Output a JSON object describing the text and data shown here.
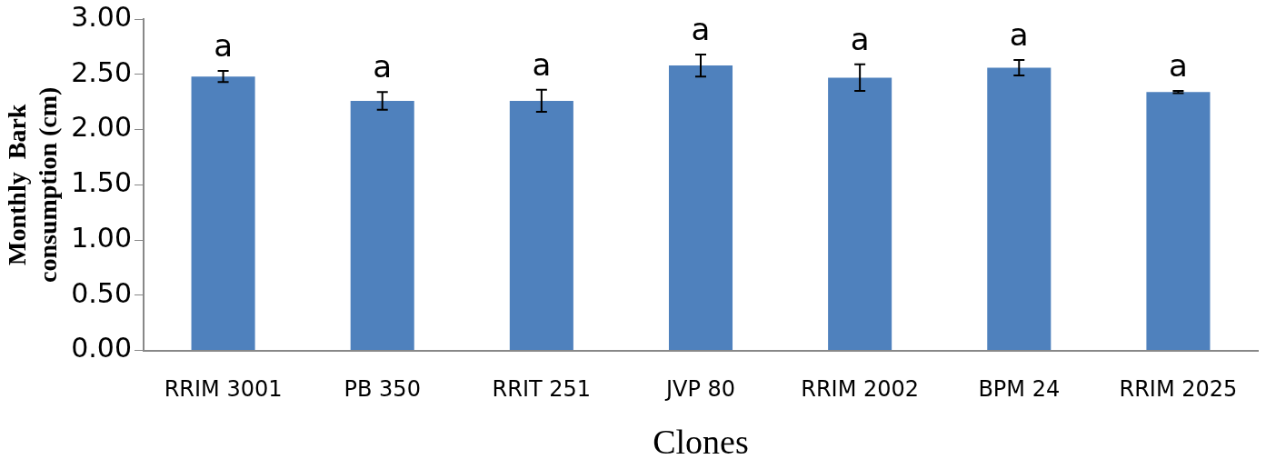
{
  "chart_data": {
    "type": "bar",
    "xlabel": "Clones",
    "ylabel": "Monthly  Bark\nconsumption (cm)",
    "categories": [
      "RRIM 3001",
      "PB 350",
      "RRIT 251",
      "JVP 80",
      "RRIM 2002",
      "BPM 24",
      "RRIM 2025"
    ],
    "values": [
      2.48,
      2.26,
      2.26,
      2.58,
      2.47,
      2.56,
      2.34
    ],
    "errors": [
      0.05,
      0.08,
      0.1,
      0.1,
      0.12,
      0.07,
      0.01
    ],
    "color": "#4f81bd",
    "ylim": [
      0,
      3
    ],
    "yticks": [
      {
        "value": 0,
        "label": "0.00"
      },
      {
        "value": 0.5,
        "label": "0.50"
      },
      {
        "value": 1,
        "label": "1.00"
      },
      {
        "value": 1.5,
        "label": "1.50"
      },
      {
        "value": 2,
        "label": "2.00"
      },
      {
        "value": 2.5,
        "label": "2.50"
      },
      {
        "value": 3,
        "label": "3.00"
      }
    ],
    "grid": false,
    "legend": false,
    "annotations": [
      {
        "text": "a",
        "x": "RRIM 3001",
        "y": 2.53
      },
      {
        "text": "a",
        "x": "PB 350",
        "y": 2.34
      },
      {
        "text": "a",
        "x": "RRIT 251",
        "y": 2.36
      },
      {
        "text": "a",
        "x": "JVP 80",
        "y": 2.68
      },
      {
        "text": "a",
        "x": "RRIM 2002",
        "y": 2.59
      },
      {
        "text": "a",
        "x": "BPM 24",
        "y": 2.63
      },
      {
        "text": "a",
        "x": "RRIM 2025",
        "y": 2.35
      }
    ]
  }
}
